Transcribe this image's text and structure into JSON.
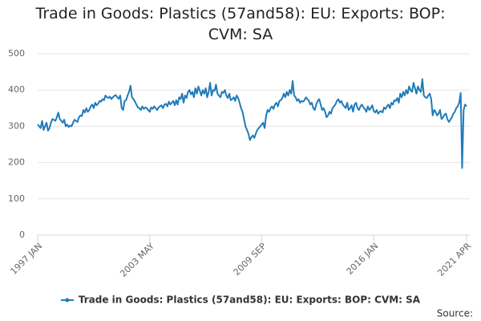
{
  "chart_data": {
    "type": "line",
    "title": "Trade in Goods: Plastics (57and58): EU: Exports: BOP: CVM: SA",
    "source": "Source:",
    "categories": [
      "1997 JAN",
      null,
      null,
      null,
      null,
      null,
      null,
      null,
      null,
      null,
      null,
      null,
      null,
      null,
      null,
      null,
      null,
      null,
      null,
      null,
      null,
      null,
      null,
      null,
      null,
      null,
      null,
      null,
      null,
      null,
      null,
      null,
      null,
      null,
      null,
      null,
      null,
      null,
      null,
      null,
      null,
      null,
      null,
      null,
      null,
      null,
      null,
      null,
      null,
      null,
      null,
      null,
      null,
      null,
      null,
      null,
      null,
      null,
      null,
      null,
      null,
      null,
      null,
      null,
      null,
      null,
      null,
      null,
      null,
      null,
      null,
      null,
      null,
      null,
      null,
      null,
      "2003 MAY",
      null,
      null,
      null,
      null,
      null,
      null,
      null,
      null,
      null,
      null,
      null,
      null,
      null,
      null,
      null,
      null,
      null,
      null,
      null,
      null,
      null,
      null,
      null,
      null,
      null,
      null,
      null,
      null,
      null,
      null,
      null,
      null,
      null,
      null,
      null,
      null,
      null,
      null,
      null,
      null,
      null,
      null,
      null,
      null,
      null,
      null,
      null,
      null,
      null,
      null,
      null,
      null,
      null,
      null,
      null,
      null,
      null,
      null,
      null,
      null,
      null,
      null,
      null,
      null,
      null,
      null,
      null,
      null,
      null,
      null,
      null,
      null,
      null,
      null,
      null,
      "2009 SEP",
      null,
      null,
      null,
      null,
      null,
      null,
      null,
      null,
      null,
      null,
      null,
      null,
      null,
      null,
      null,
      null,
      null,
      null,
      null,
      null,
      null,
      null,
      null,
      null,
      null,
      null,
      null,
      null,
      null,
      null,
      null,
      null,
      null,
      null,
      null,
      null,
      null,
      null,
      null,
      null,
      null,
      null,
      null,
      null,
      null,
      null,
      null,
      null,
      null,
      null,
      null,
      null,
      null,
      null,
      null,
      null,
      null,
      null,
      null,
      null,
      null,
      null,
      null,
      null,
      null,
      null,
      null,
      null,
      null,
      null,
      null,
      null,
      null,
      null,
      null,
      "2016 JAN",
      null,
      null,
      null,
      null,
      null,
      null,
      null,
      null,
      null,
      null,
      null,
      null,
      null,
      null,
      null,
      null,
      null,
      null,
      null,
      null,
      null,
      null,
      null,
      null,
      null,
      null,
      null,
      null,
      null,
      null,
      null,
      null,
      null,
      null,
      null,
      null,
      null,
      null,
      null,
      null,
      null,
      null,
      null,
      null,
      null,
      null,
      null,
      null,
      null,
      null,
      null,
      null,
      null,
      null,
      null,
      null,
      null,
      null,
      null,
      null,
      null,
      null,
      "2021 APR"
    ],
    "series": [
      {
        "name": "Trade in Goods: Plastics (57and58): EU: Exports: BOP: CVM: SA",
        "color": "#1f7cb8",
        "values": [
          305,
          300,
          295,
          315,
          290,
          300,
          310,
          288,
          295,
          310,
          320,
          318,
          315,
          325,
          338,
          320,
          315,
          310,
          318,
          300,
          305,
          298,
          302,
          300,
          310,
          318,
          315,
          312,
          325,
          330,
          328,
          345,
          338,
          350,
          340,
          345,
          355,
          360,
          350,
          365,
          358,
          362,
          370,
          368,
          375,
          372,
          385,
          380,
          378,
          382,
          375,
          380,
          384,
          386,
          380,
          376,
          385,
          350,
          345,
          370,
          372,
          385,
          395,
          412,
          380,
          375,
          368,
          360,
          352,
          350,
          345,
          355,
          348,
          352,
          350,
          345,
          340,
          352,
          348,
          355,
          350,
          345,
          352,
          355,
          358,
          350,
          360,
          362,
          355,
          368,
          360,
          365,
          370,
          358,
          372,
          360,
          380,
          375,
          390,
          365,
          385,
          378,
          395,
          400,
          388,
          395,
          380,
          405,
          390,
          410,
          398,
          385,
          400,
          390,
          405,
          380,
          395,
          420,
          385,
          400,
          398,
          415,
          390,
          385,
          380,
          395,
          392,
          400,
          385,
          378,
          390,
          372,
          375,
          380,
          370,
          385,
          378,
          365,
          350,
          340,
          320,
          300,
          290,
          280,
          262,
          270,
          275,
          268,
          280,
          290,
          295,
          300,
          305,
          310,
          295,
          330,
          345,
          340,
          350,
          355,
          348,
          360,
          365,
          355,
          370,
          372,
          378,
          390,
          380,
          395,
          385,
          400,
          390,
          425,
          385,
          380,
          370,
          375,
          365,
          370,
          368,
          372,
          380,
          375,
          370,
          360,
          365,
          350,
          345,
          360,
          370,
          375,
          360,
          345,
          350,
          340,
          325,
          330,
          340,
          335,
          350,
          355,
          360,
          370,
          375,
          365,
          370,
          360,
          355,
          350,
          365,
          345,
          350,
          358,
          340,
          360,
          365,
          350,
          345,
          355,
          360,
          352,
          348,
          340,
          355,
          345,
          350,
          358,
          342,
          338,
          345,
          335,
          340,
          342,
          338,
          352,
          348,
          355,
          360,
          350,
          365,
          360,
          372,
          370,
          378,
          365,
          390,
          380,
          395,
          385,
          400,
          390,
          410,
          400,
          395,
          420,
          405,
          390,
          410,
          400,
          395,
          430,
          385,
          380,
          378,
          385,
          390,
          375,
          330,
          345,
          340,
          330,
          335,
          345,
          320,
          325,
          332,
          335,
          320,
          312,
          318,
          325,
          335,
          340,
          350,
          355,
          365,
          392,
          185,
          345,
          360,
          355
        ]
      }
    ],
    "ylim": [
      0,
      500
    ],
    "yticks": [
      0,
      100,
      200,
      300,
      400,
      500
    ],
    "grid": true,
    "legend": "bottom"
  }
}
